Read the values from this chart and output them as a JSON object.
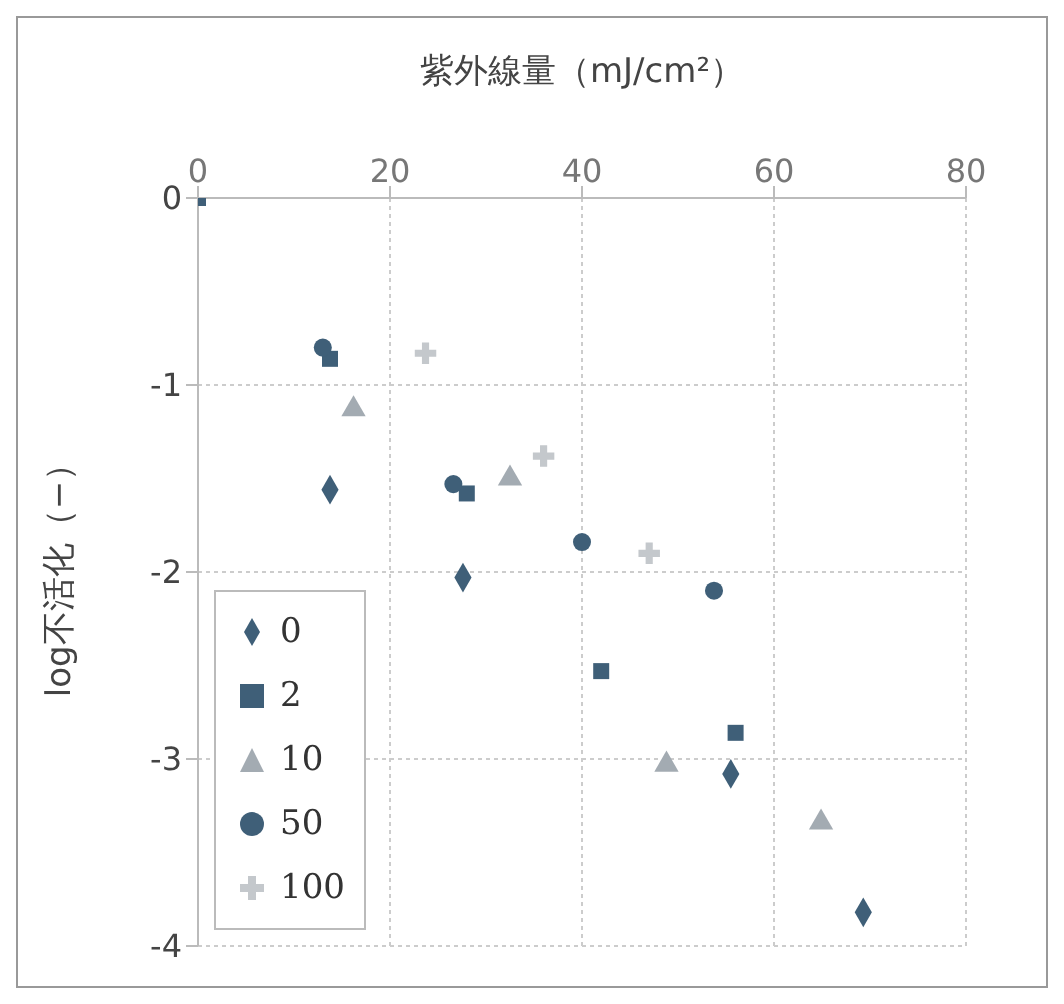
{
  "chart_data": {
    "type": "scatter",
    "xlabel": "紫外線量（mJ/cm²）",
    "ylabel": "log不活化（−）",
    "xlim": [
      0,
      80
    ],
    "xticks": [
      0,
      20,
      40,
      60,
      80
    ],
    "ylim": [
      -4,
      0
    ],
    "yticks": [
      -4,
      -3,
      -2,
      -1,
      0
    ],
    "grid": true,
    "legend": "bottom left",
    "series": [
      {
        "name": "0",
        "color": "#3f5f78",
        "marker": "diamond",
        "x": [
          13.75,
          27.6,
          55.5,
          69.3
        ],
        "values": [
          -1.56,
          -2.03,
          -3.08,
          -3.82
        ]
      },
      {
        "name": "2",
        "color": "#3f5f78",
        "marker": "square",
        "x": [
          0,
          13.75,
          28,
          42,
          56
        ],
        "values": [
          0,
          -0.86,
          -1.58,
          -2.53,
          -2.86
        ]
      },
      {
        "name": "10",
        "color": "#a3abb2",
        "marker": "triangle",
        "x": [
          16.2,
          32.5,
          48.8,
          64.9
        ],
        "values": [
          -1.13,
          -1.5,
          -3.03,
          -3.34
        ]
      },
      {
        "name": "50",
        "color": "#3f5f78",
        "marker": "circle",
        "x": [
          13,
          26.6,
          40,
          53.75
        ],
        "values": [
          -0.8,
          -1.53,
          -1.84,
          -2.1
        ]
      },
      {
        "name": "100",
        "color": "#c4c8cc",
        "marker": "cross",
        "x": [
          23.7,
          36,
          47
        ],
        "values": [
          -0.83,
          -1.38,
          -1.9
        ]
      }
    ]
  }
}
